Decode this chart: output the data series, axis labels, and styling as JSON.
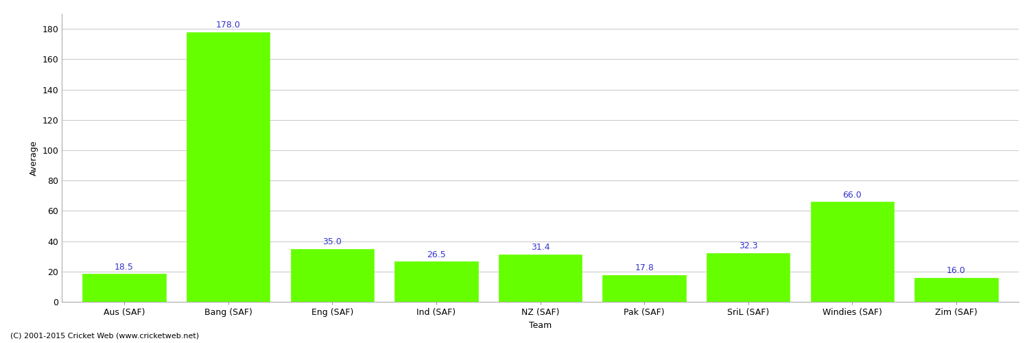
{
  "categories": [
    "Aus (SAF)",
    "Bang (SAF)",
    "Eng (SAF)",
    "Ind (SAF)",
    "NZ (SAF)",
    "Pak (SAF)",
    "SriL (SAF)",
    "Windies (SAF)",
    "Zim (SAF)"
  ],
  "values": [
    18.5,
    178.0,
    35.0,
    26.5,
    31.4,
    17.8,
    32.3,
    66.0,
    16.0
  ],
  "bar_color": "#66ff00",
  "bar_edge_color": "#66ff00",
  "label_color": "#3333cc",
  "xlabel": "Team",
  "ylabel": "Average",
  "ylim": [
    0,
    190
  ],
  "yticks": [
    0,
    20,
    40,
    60,
    80,
    100,
    120,
    140,
    160,
    180
  ],
  "grid_color": "#cccccc",
  "background_color": "#ffffff",
  "footer": "(C) 2001-2015 Cricket Web (www.cricketweb.net)",
  "label_fontsize": 9,
  "axis_label_fontsize": 9,
  "tick_fontsize": 9,
  "footer_fontsize": 8
}
